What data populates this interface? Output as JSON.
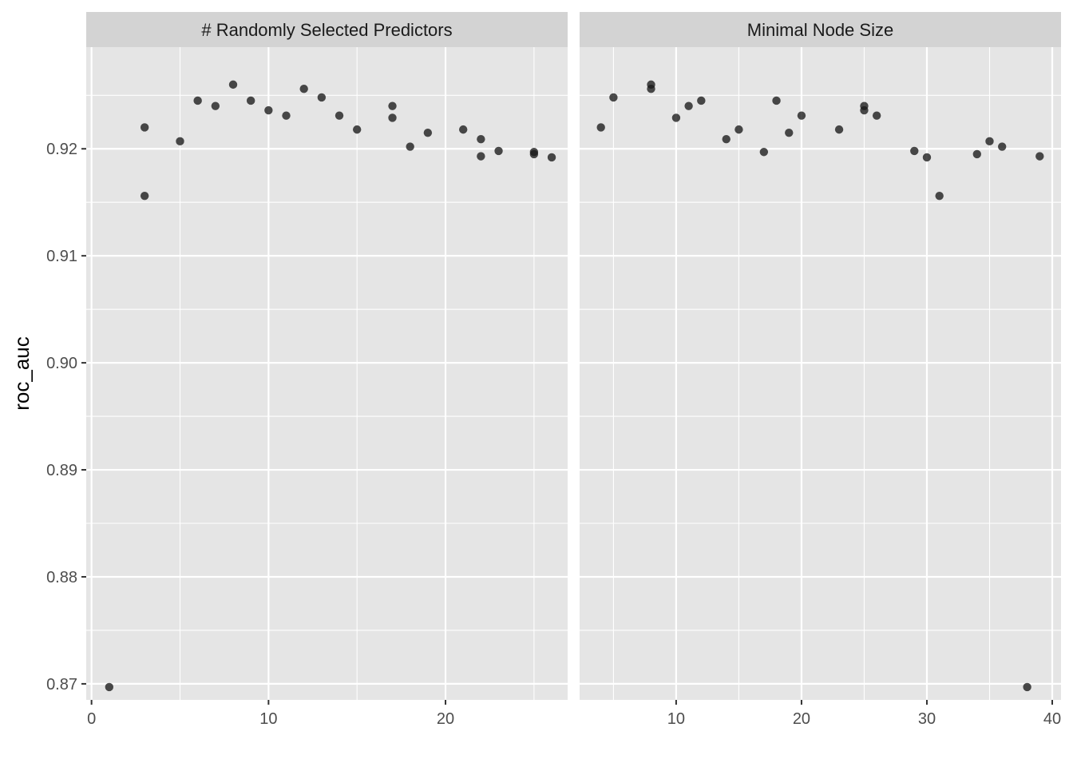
{
  "chart_data": {
    "type": "scatter",
    "ylabel": "roc_auc",
    "xlabel": "",
    "ylim": [
      0.8685,
      0.9295
    ],
    "y_ticks": [
      "0.87",
      "0.88",
      "0.89",
      "0.90",
      "0.91",
      "0.92"
    ],
    "grid": true,
    "colors": {
      "panel_bg": "#e5e5e5",
      "strip_bg": "#d3d3d3",
      "grid": "#ffffff",
      "point": "#1a1a1a"
    },
    "panels": [
      {
        "title": "# Randomly Selected Predictors",
        "xlim": [
          -0.3,
          26.9
        ],
        "x_ticks": [
          0,
          10,
          20
        ],
        "x_tick_labels": [
          "0",
          "10",
          "20"
        ],
        "points": [
          {
            "x": 1,
            "y": 0.8697
          },
          {
            "x": 3,
            "y": 0.922
          },
          {
            "x": 3,
            "y": 0.9156
          },
          {
            "x": 5,
            "y": 0.9207
          },
          {
            "x": 6,
            "y": 0.9245
          },
          {
            "x": 7,
            "y": 0.924
          },
          {
            "x": 8,
            "y": 0.926
          },
          {
            "x": 9,
            "y": 0.9245
          },
          {
            "x": 10,
            "y": 0.9236
          },
          {
            "x": 11,
            "y": 0.9231
          },
          {
            "x": 12,
            "y": 0.9256
          },
          {
            "x": 13,
            "y": 0.9248
          },
          {
            "x": 14,
            "y": 0.9231
          },
          {
            "x": 15,
            "y": 0.9218
          },
          {
            "x": 17,
            "y": 0.924
          },
          {
            "x": 17,
            "y": 0.9229
          },
          {
            "x": 18,
            "y": 0.9202
          },
          {
            "x": 19,
            "y": 0.9215
          },
          {
            "x": 21,
            "y": 0.9218
          },
          {
            "x": 22,
            "y": 0.9209
          },
          {
            "x": 22,
            "y": 0.9193
          },
          {
            "x": 23,
            "y": 0.9198
          },
          {
            "x": 25,
            "y": 0.9197
          },
          {
            "x": 25,
            "y": 0.9195
          },
          {
            "x": 26,
            "y": 0.9192
          }
        ]
      },
      {
        "title": "Minimal Node Size",
        "xlim": [
          2.3,
          40.7
        ],
        "x_ticks": [
          10,
          20,
          30,
          40
        ],
        "x_tick_labels": [
          "10",
          "20",
          "30",
          "40"
        ],
        "points": [
          {
            "x": 4,
            "y": 0.922
          },
          {
            "x": 5,
            "y": 0.9248
          },
          {
            "x": 8,
            "y": 0.926
          },
          {
            "x": 8,
            "y": 0.9256
          },
          {
            "x": 10,
            "y": 0.9229
          },
          {
            "x": 11,
            "y": 0.924
          },
          {
            "x": 12,
            "y": 0.9245
          },
          {
            "x": 14,
            "y": 0.9209
          },
          {
            "x": 15,
            "y": 0.9218
          },
          {
            "x": 17,
            "y": 0.9197
          },
          {
            "x": 18,
            "y": 0.9245
          },
          {
            "x": 19,
            "y": 0.9215
          },
          {
            "x": 20,
            "y": 0.9231
          },
          {
            "x": 23,
            "y": 0.9218
          },
          {
            "x": 25,
            "y": 0.924
          },
          {
            "x": 25,
            "y": 0.9236
          },
          {
            "x": 26,
            "y": 0.9231
          },
          {
            "x": 29,
            "y": 0.9198
          },
          {
            "x": 30,
            "y": 0.9192
          },
          {
            "x": 31,
            "y": 0.9156
          },
          {
            "x": 34,
            "y": 0.9195
          },
          {
            "x": 35,
            "y": 0.9207
          },
          {
            "x": 36,
            "y": 0.9202
          },
          {
            "x": 38,
            "y": 0.8697
          },
          {
            "x": 39,
            "y": 0.9193
          }
        ]
      }
    ]
  }
}
